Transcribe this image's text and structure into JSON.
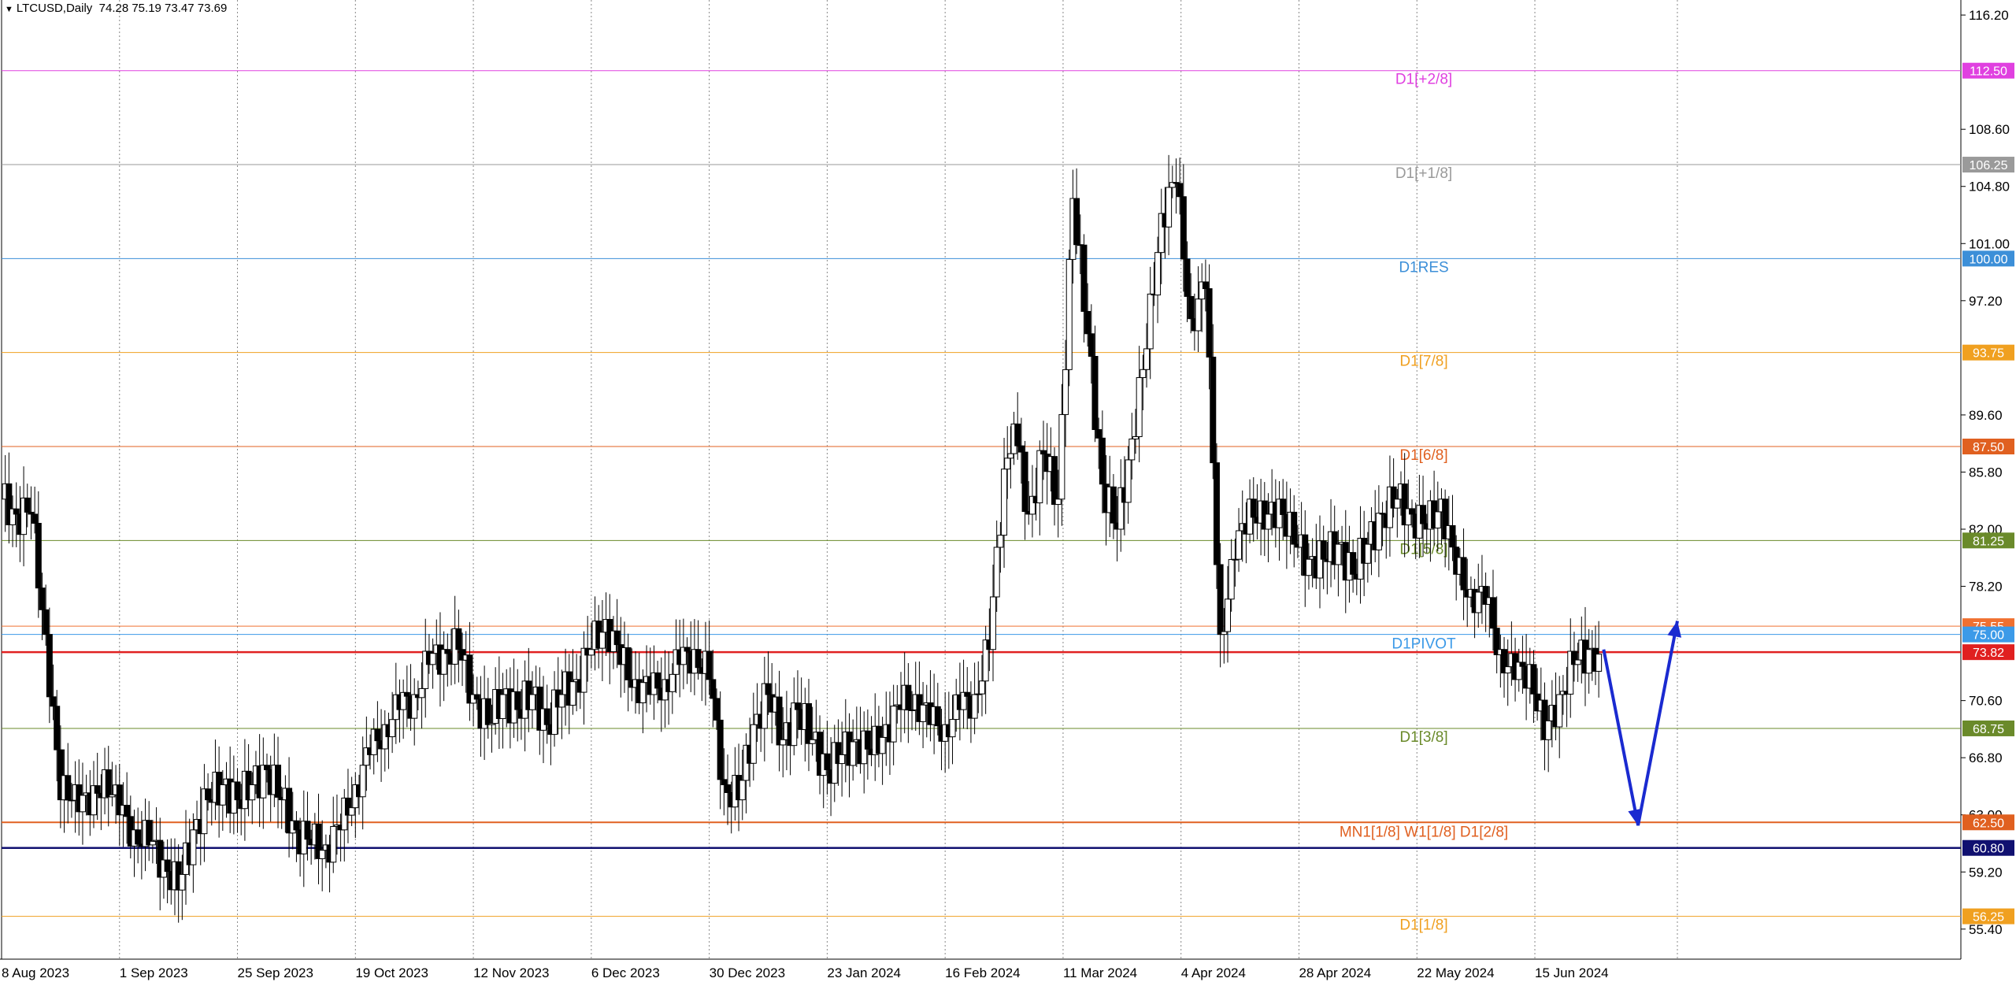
{
  "header": {
    "symbol": "LTCUSD,Daily",
    "ohlc": "74.28 75.19 73.47 73.69"
  },
  "chart_data": {
    "type": "candlestick",
    "ylim": [
      53.4,
      117.2
    ],
    "y_ticks": [
      "116.20",
      "108.60",
      "104.80",
      "101.00",
      "97.20",
      "89.60",
      "85.80",
      "82.00",
      "78.20",
      "70.60",
      "66.80",
      "63.00",
      "59.20",
      "55.40"
    ],
    "x_date_range": [
      "2023-08-08",
      "2024-07-14"
    ],
    "x_ticks": [
      {
        "date": "2023-08-08",
        "label": "8 Aug 2023"
      },
      {
        "date": "2023-09-01",
        "label": "1 Sep 2023"
      },
      {
        "date": "2023-09-25",
        "label": "25 Sep 2023"
      },
      {
        "date": "2023-10-19",
        "label": "19 Oct 2023"
      },
      {
        "date": "2023-11-12",
        "label": "12 Nov 2023"
      },
      {
        "date": "2023-12-06",
        "label": "6 Dec 2023"
      },
      {
        "date": "2023-12-30",
        "label": "30 Dec 2023"
      },
      {
        "date": "2024-01-23",
        "label": "23 Jan 2024"
      },
      {
        "date": "2024-02-16",
        "label": "16 Feb 2024"
      },
      {
        "date": "2024-03-11",
        "label": "11 Mar 2024"
      },
      {
        "date": "2024-04-04",
        "label": "4 Apr 2024"
      },
      {
        "date": "2024-04-28",
        "label": "28 Apr 2024"
      },
      {
        "date": "2024-05-22",
        "label": "22 May 2024"
      },
      {
        "date": "2024-06-15",
        "label": "15 Jun 2024"
      }
    ],
    "levels": [
      {
        "price": 112.5,
        "label": "D1[+2/8]",
        "tag": "112.50",
        "color": "#e040e0"
      },
      {
        "price": 106.25,
        "label": "D1[+1/8]",
        "tag": "106.25",
        "color": "#9a9a9a"
      },
      {
        "price": 100.0,
        "label": "D1RES",
        "tag": "100.00",
        "color": "#3c8fd8"
      },
      {
        "price": 93.75,
        "label": "D1[7/8]",
        "tag": "93.75",
        "color": "#f0a020"
      },
      {
        "price": 87.5,
        "label": "D1[6/8]",
        "tag": "87.50",
        "color": "#e06020"
      },
      {
        "price": 81.25,
        "label": "D1[5/8]",
        "tag": "81.25",
        "color": "#6a8a2a"
      },
      {
        "price": 75.55,
        "label": "",
        "tag": "75.55",
        "color": "#f07030"
      },
      {
        "price": 75.0,
        "label": "D1PIVOT",
        "tag": "75.00",
        "color": "#3c9ae8"
      },
      {
        "price": 73.82,
        "label": "",
        "tag": "73.82",
        "color": "#e02020"
      },
      {
        "price": 68.75,
        "label": "D1[3/8]",
        "tag": "68.75",
        "color": "#6a8a2a"
      },
      {
        "price": 62.5,
        "label": "MN1[1/8]  W1[1/8]  D1[2/8]",
        "tag": "62.50",
        "color": "#e06020"
      },
      {
        "price": 60.8,
        "label": "",
        "tag": "60.80",
        "color": "#101070"
      },
      {
        "price": 56.25,
        "label": "D1[1/8]",
        "tag": "56.25",
        "color": "#f0a020"
      }
    ],
    "closes": [
      [
        "2023-08-08",
        84
      ],
      [
        "2023-08-11",
        83
      ],
      [
        "2023-08-14",
        83
      ],
      [
        "2023-08-17",
        75
      ],
      [
        "2023-08-20",
        64
      ],
      [
        "2023-08-23",
        65
      ],
      [
        "2023-08-26",
        63
      ],
      [
        "2023-08-29",
        66
      ],
      [
        "2023-09-01",
        63
      ],
      [
        "2023-09-04",
        62
      ],
      [
        "2023-09-07",
        61
      ],
      [
        "2023-09-10",
        60
      ],
      [
        "2023-09-13",
        58
      ],
      [
        "2023-09-16",
        62
      ],
      [
        "2023-09-19",
        64
      ],
      [
        "2023-09-22",
        65
      ],
      [
        "2023-09-25",
        64
      ],
      [
        "2023-09-28",
        65
      ],
      [
        "2023-10-01",
        66
      ],
      [
        "2023-10-04",
        64
      ],
      [
        "2023-10-07",
        62
      ],
      [
        "2023-10-10",
        61
      ],
      [
        "2023-10-13",
        61
      ],
      [
        "2023-10-16",
        62
      ],
      [
        "2023-10-19",
        65
      ],
      [
        "2023-10-22",
        67
      ],
      [
        "2023-10-25",
        69
      ],
      [
        "2023-10-28",
        70
      ],
      [
        "2023-10-31",
        71
      ],
      [
        "2023-11-03",
        73
      ],
      [
        "2023-11-06",
        74
      ],
      [
        "2023-11-09",
        74
      ],
      [
        "2023-11-12",
        71
      ],
      [
        "2023-11-15",
        69
      ],
      [
        "2023-11-18",
        71
      ],
      [
        "2023-11-21",
        70
      ],
      [
        "2023-11-24",
        71
      ],
      [
        "2023-11-27",
        69
      ],
      [
        "2023-11-30",
        71
      ],
      [
        "2023-12-03",
        72
      ],
      [
        "2023-12-06",
        74
      ],
      [
        "2023-12-09",
        76
      ],
      [
        "2023-12-12",
        73
      ],
      [
        "2023-12-15",
        72
      ],
      [
        "2023-12-18",
        71
      ],
      [
        "2023-12-21",
        72
      ],
      [
        "2023-12-24",
        73
      ],
      [
        "2023-12-27",
        74
      ],
      [
        "2023-12-30",
        72
      ],
      [
        "2024-01-02",
        65
      ],
      [
        "2024-01-05",
        64
      ],
      [
        "2024-01-08",
        69
      ],
      [
        "2024-01-11",
        71
      ],
      [
        "2024-01-14",
        68
      ],
      [
        "2024-01-17",
        70
      ],
      [
        "2024-01-20",
        68
      ],
      [
        "2024-01-23",
        66
      ],
      [
        "2024-01-26",
        67
      ],
      [
        "2024-01-29",
        68
      ],
      [
        "2024-02-01",
        67
      ],
      [
        "2024-02-04",
        69
      ],
      [
        "2024-02-07",
        70
      ],
      [
        "2024-02-10",
        71
      ],
      [
        "2024-02-13",
        69
      ],
      [
        "2024-02-16",
        69
      ],
      [
        "2024-02-19",
        70
      ],
      [
        "2024-02-22",
        71
      ],
      [
        "2024-02-25",
        74
      ],
      [
        "2024-02-28",
        86
      ],
      [
        "2024-03-01",
        89
      ],
      [
        "2024-03-04",
        83
      ],
      [
        "2024-03-07",
        87
      ],
      [
        "2024-03-10",
        84
      ],
      [
        "2024-03-13",
        104
      ],
      [
        "2024-03-16",
        95
      ],
      [
        "2024-03-19",
        85
      ],
      [
        "2024-03-22",
        82
      ],
      [
        "2024-03-25",
        88
      ],
      [
        "2024-03-28",
        94
      ],
      [
        "2024-03-31",
        103
      ],
      [
        "2024-04-03",
        105
      ],
      [
        "2024-04-06",
        96
      ],
      [
        "2024-04-09",
        98
      ],
      [
        "2024-04-12",
        75
      ],
      [
        "2024-04-15",
        80
      ],
      [
        "2024-04-18",
        84
      ],
      [
        "2024-04-21",
        82
      ],
      [
        "2024-04-24",
        84
      ],
      [
        "2024-04-27",
        81
      ],
      [
        "2024-04-30",
        80
      ],
      [
        "2024-05-03",
        80
      ],
      [
        "2024-05-06",
        81
      ],
      [
        "2024-05-09",
        79
      ],
      [
        "2024-05-12",
        81
      ],
      [
        "2024-05-15",
        83
      ],
      [
        "2024-05-18",
        84
      ],
      [
        "2024-05-21",
        83
      ],
      [
        "2024-05-24",
        82
      ],
      [
        "2024-05-27",
        84
      ],
      [
        "2024-05-30",
        79
      ],
      [
        "2024-06-02",
        78
      ],
      [
        "2024-06-05",
        77
      ],
      [
        "2024-06-08",
        74
      ],
      [
        "2024-06-11",
        72
      ],
      [
        "2024-06-14",
        73
      ],
      [
        "2024-06-17",
        68
      ],
      [
        "2024-06-20",
        71
      ],
      [
        "2024-06-23",
        73
      ],
      [
        "2024-06-26",
        74
      ],
      [
        "2024-06-28",
        73.69
      ]
    ],
    "forecast_arrow": {
      "color": "#1a2ad0",
      "points": [
        [
          "2024-06-29",
          74.0
        ],
        [
          "2024-07-06",
          62.3
        ],
        [
          "2024-07-14",
          75.9
        ]
      ]
    }
  }
}
